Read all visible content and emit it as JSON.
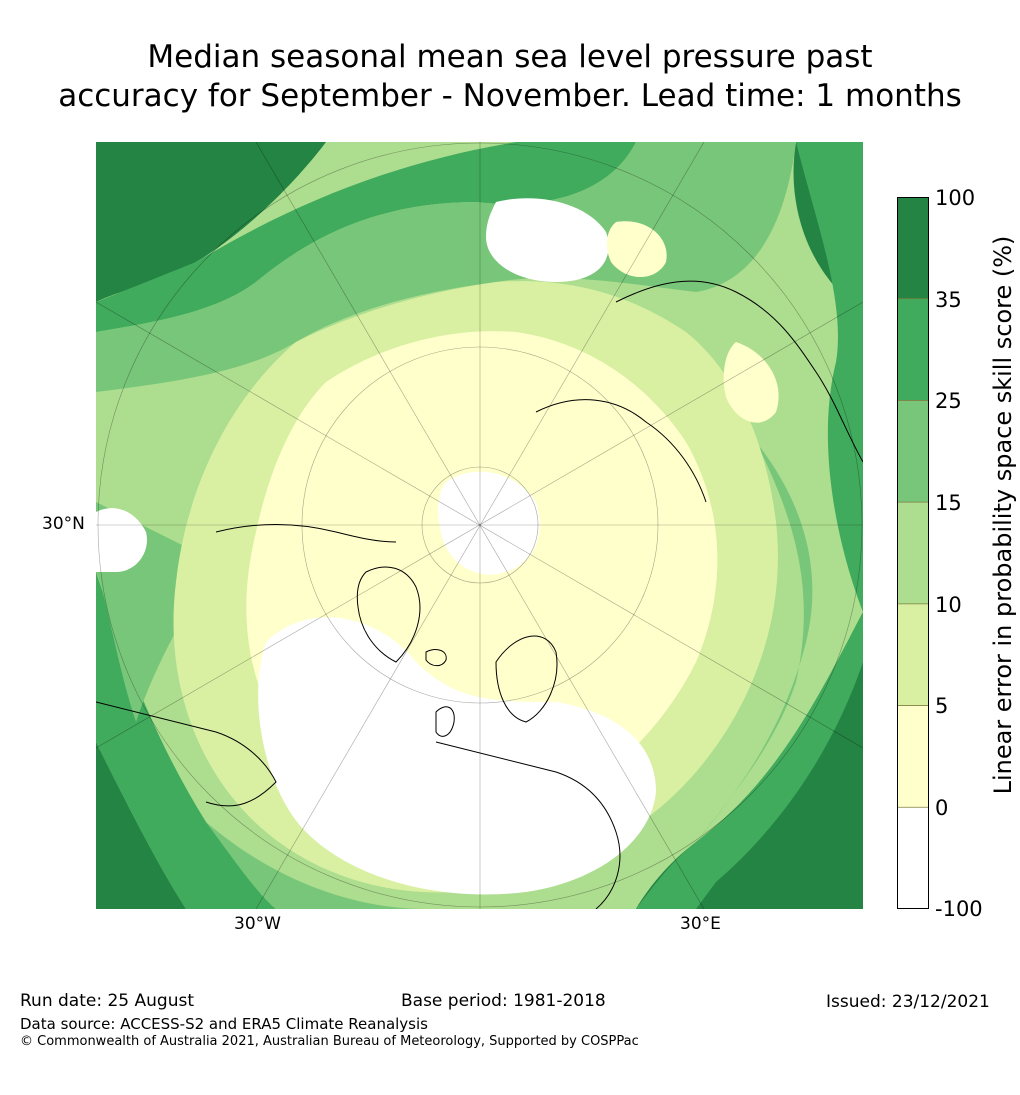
{
  "title": {
    "line1": "Median seasonal mean sea level pressure past",
    "line2": "accuracy for September - November. Lead time: 1 months"
  },
  "map": {
    "projection": "north-polar-stereographic",
    "lat_labels": [
      "30°N"
    ],
    "lon_labels": [
      "30°W",
      "30°E"
    ]
  },
  "colorbar": {
    "label": "Linear error in probability space skill score (%)",
    "ticks": [
      "100",
      "35",
      "25",
      "15",
      "10",
      "5",
      "0",
      "-100"
    ],
    "bins": [
      {
        "from": -100,
        "to": 0,
        "color": "#ffffff"
      },
      {
        "from": 0,
        "to": 5,
        "color": "#ffffcc"
      },
      {
        "from": 5,
        "to": 10,
        "color": "#d9f0a3"
      },
      {
        "from": 10,
        "to": 15,
        "color": "#addd8e"
      },
      {
        "from": 15,
        "to": 25,
        "color": "#78c679"
      },
      {
        "from": 25,
        "to": 35,
        "color": "#41ab5d"
      },
      {
        "from": 35,
        "to": 100,
        "color": "#238443"
      }
    ]
  },
  "footer": {
    "run_date": "Run date: 25 August",
    "base_period": "Base period: 1981-2018",
    "issued": "Issued: 23/12/2021",
    "data_source": "Data source: ACCESS-S2 and ERA5 Climate Reanalysis",
    "copyright": "© Commonwealth of Australia 2021, Australian Bureau of Meteorology, Supported by COSPPac"
  }
}
